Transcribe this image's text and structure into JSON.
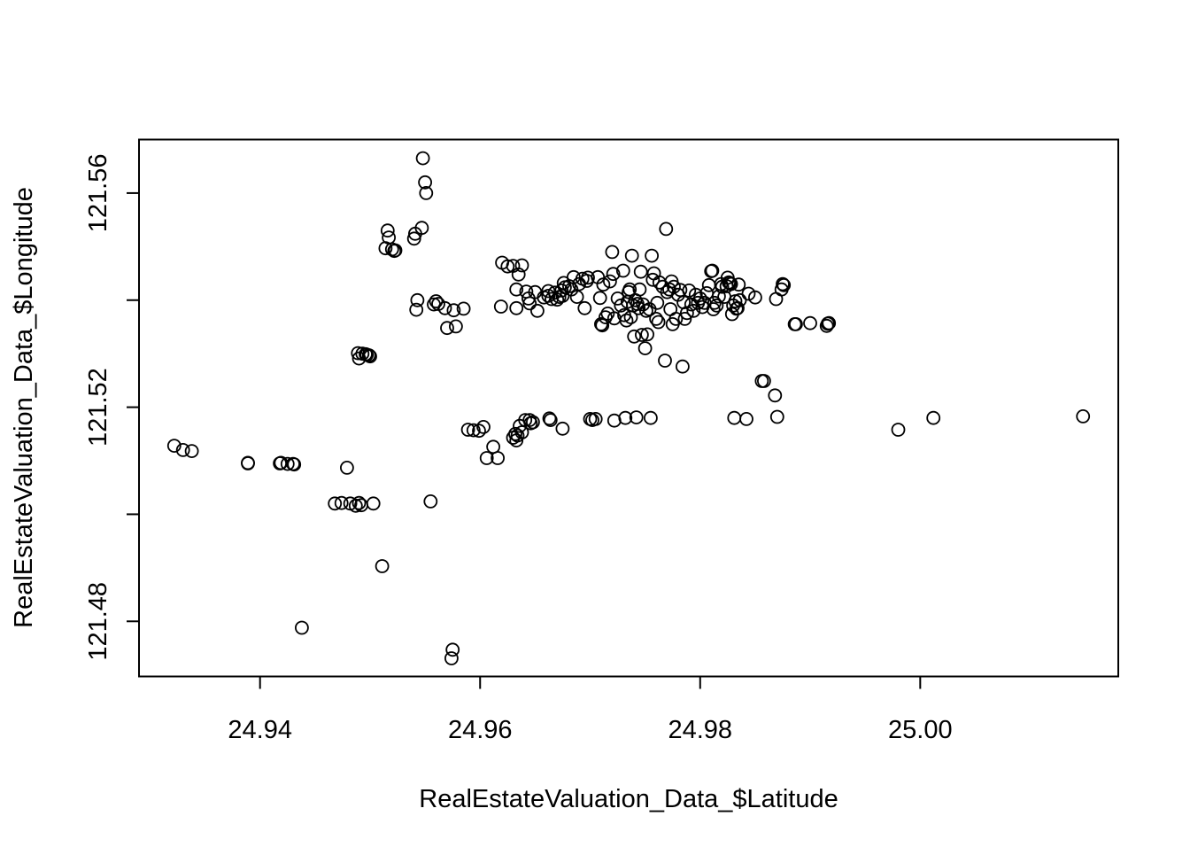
{
  "chart_data": {
    "type": "scatter",
    "title": "",
    "xlabel": "RealEstateValuation_Data_$Latitude",
    "ylabel": "RealEstateValuation_Data_$Longitude",
    "xlim": [
      24.929,
      25.018
    ],
    "ylim": [
      121.4697,
      121.57
    ],
    "x_ticks": [
      24.94,
      24.96,
      24.98,
      25.0
    ],
    "x_tick_labels": [
      "24.94",
      "24.96",
      "24.98",
      "25.00"
    ],
    "y_ticks": [
      121.48,
      121.5,
      121.52,
      121.54,
      121.56
    ],
    "y_tick_labels": [
      "121.48",
      "",
      "121.52",
      "",
      "121.56"
    ],
    "grid": false,
    "legend": "none",
    "marker": "open-circle",
    "marker_color": "#000000",
    "series": [
      {
        "points": [
          [
            24.9322,
            121.5128
          ],
          [
            24.933,
            121.512
          ],
          [
            24.9338,
            121.5118
          ],
          [
            24.9389,
            121.5095
          ],
          [
            24.9389,
            121.5096
          ],
          [
            24.9418,
            121.5095
          ],
          [
            24.9419,
            121.5096
          ],
          [
            24.9425,
            121.5094
          ],
          [
            24.943,
            121.5094
          ],
          [
            24.9431,
            121.5093
          ],
          [
            24.9438,
            121.4788
          ],
          [
            24.9468,
            121.502
          ],
          [
            24.9474,
            121.5021
          ],
          [
            24.9479,
            121.5087
          ],
          [
            24.9482,
            121.502
          ],
          [
            24.9487,
            121.5016
          ],
          [
            24.949,
            121.5021
          ],
          [
            24.9492,
            121.5017
          ],
          [
            24.9503,
            121.502
          ],
          [
            24.9489,
            121.5301
          ],
          [
            24.949,
            121.5291
          ],
          [
            24.9493,
            121.53
          ],
          [
            24.9496,
            121.5299
          ],
          [
            24.9497,
            121.5298
          ],
          [
            24.95,
            121.5295
          ],
          [
            24.9499,
            121.5297
          ],
          [
            24.9511,
            121.4903
          ],
          [
            24.9514,
            121.5497
          ],
          [
            24.9516,
            121.553
          ],
          [
            24.9517,
            121.5517
          ],
          [
            24.952,
            121.5495
          ],
          [
            24.9523,
            121.5493
          ],
          [
            24.9522,
            121.5492
          ],
          [
            24.954,
            121.5515
          ],
          [
            24.9541,
            121.5524
          ],
          [
            24.9547,
            121.5535
          ],
          [
            24.9548,
            121.5665
          ],
          [
            24.955,
            121.562
          ],
          [
            24.9551,
            121.56
          ],
          [
            24.9543,
            121.54
          ],
          [
            24.9542,
            121.5382
          ],
          [
            24.9555,
            121.5024
          ],
          [
            24.9558,
            121.5392
          ],
          [
            24.956,
            121.5398
          ],
          [
            24.9562,
            121.5393
          ],
          [
            24.9568,
            121.5385
          ],
          [
            24.957,
            121.5348
          ],
          [
            24.9574,
            121.4731
          ],
          [
            24.9575,
            121.4747
          ],
          [
            24.9576,
            121.5381
          ],
          [
            24.9578,
            121.5351
          ],
          [
            24.9585,
            121.5384
          ],
          [
            24.9589,
            121.5158
          ],
          [
            24.9594,
            121.5157
          ],
          [
            24.9599,
            121.5156
          ],
          [
            24.9603,
            121.5163
          ],
          [
            24.9606,
            121.5105
          ],
          [
            24.9612,
            121.5126
          ],
          [
            24.9616,
            121.5105
          ],
          [
            24.9619,
            121.5388
          ],
          [
            24.962,
            121.547
          ],
          [
            24.9625,
            121.5463
          ],
          [
            24.963,
            121.5143
          ],
          [
            24.9632,
            121.515
          ],
          [
            24.9634,
            121.5147
          ],
          [
            24.9633,
            121.5138
          ],
          [
            24.9636,
            121.5165
          ],
          [
            24.9638,
            121.5153
          ],
          [
            24.9641,
            121.5176
          ],
          [
            24.9645,
            121.5176
          ],
          [
            24.9648,
            121.5172
          ],
          [
            24.9646,
            121.517
          ],
          [
            24.963,
            121.5464
          ],
          [
            24.9635,
            121.5448
          ],
          [
            24.9638,
            121.5465
          ],
          [
            24.9633,
            121.542
          ],
          [
            24.9633,
            121.5385
          ],
          [
            24.9642,
            121.5416
          ],
          [
            24.9645,
            121.5394
          ],
          [
            24.9644,
            121.5403
          ],
          [
            24.965,
            121.5415
          ],
          [
            24.9652,
            121.538
          ],
          [
            24.9658,
            121.5405
          ],
          [
            24.9662,
            121.5417
          ],
          [
            24.9662,
            121.5408
          ],
          [
            24.9665,
            121.5402
          ],
          [
            24.9668,
            121.5414
          ],
          [
            24.967,
            121.5401
          ],
          [
            24.9672,
            121.5406
          ],
          [
            24.9674,
            121.5418
          ],
          [
            24.9675,
            121.5408
          ],
          [
            24.9676,
            121.5432
          ],
          [
            24.9677,
            121.5424
          ],
          [
            24.9663,
            121.5179
          ],
          [
            24.9664,
            121.5176
          ],
          [
            24.9675,
            121.516
          ],
          [
            24.9681,
            121.5426
          ],
          [
            24.9683,
            121.542
          ],
          [
            24.9685,
            121.5443
          ],
          [
            24.9688,
            121.5406
          ],
          [
            24.969,
            121.543
          ],
          [
            24.9693,
            121.544
          ],
          [
            24.9695,
            121.5385
          ],
          [
            24.9697,
            121.5436
          ],
          [
            24.9698,
            121.5442
          ],
          [
            24.97,
            121.5178
          ],
          [
            24.9702,
            121.5176
          ],
          [
            24.9705,
            121.5178
          ],
          [
            24.9707,
            121.5443
          ],
          [
            24.9709,
            121.5404
          ],
          [
            24.971,
            121.5355
          ],
          [
            24.9711,
            121.5353
          ],
          [
            24.9712,
            121.5429
          ],
          [
            24.9714,
            121.5368
          ],
          [
            24.9716,
            121.5375
          ],
          [
            24.9718,
            121.5435
          ],
          [
            24.972,
            121.549
          ],
          [
            24.9721,
            121.5449
          ],
          [
            24.9722,
            121.5175
          ],
          [
            24.9722,
            121.5366
          ],
          [
            24.9725,
            121.5403
          ],
          [
            24.9728,
            121.539
          ],
          [
            24.973,
            121.5455
          ],
          [
            24.9731,
            121.5372
          ],
          [
            24.9732,
            121.518
          ],
          [
            24.9733,
            121.5362
          ],
          [
            24.9734,
            121.5397
          ],
          [
            24.9735,
            121.5415
          ],
          [
            24.9736,
            121.542
          ],
          [
            24.9737,
            121.5368
          ],
          [
            24.9738,
            121.5483
          ],
          [
            24.9739,
            121.539
          ],
          [
            24.974,
            121.5332
          ],
          [
            24.9741,
            121.54
          ],
          [
            24.9742,
            121.5181
          ],
          [
            24.9743,
            121.5393
          ],
          [
            24.9744,
            121.5385
          ],
          [
            24.9745,
            121.542
          ],
          [
            24.9746,
            121.5453
          ],
          [
            24.9747,
            121.5335
          ],
          [
            24.9748,
            121.5392
          ],
          [
            24.975,
            121.531
          ],
          [
            24.9751,
            121.538
          ],
          [
            24.9752,
            121.5336
          ],
          [
            24.9754,
            121.5383
          ],
          [
            24.9755,
            121.518
          ],
          [
            24.9756,
            121.5483
          ],
          [
            24.9757,
            121.5438
          ],
          [
            24.9758,
            121.545
          ],
          [
            24.976,
            121.5365
          ],
          [
            24.9761,
            121.5395
          ],
          [
            24.9762,
            121.5359
          ],
          [
            24.9763,
            121.5433
          ],
          [
            24.9766,
            121.5425
          ],
          [
            24.9768,
            121.5287
          ],
          [
            24.9769,
            121.5533
          ],
          [
            24.977,
            121.5415
          ],
          [
            24.9772,
            121.542
          ],
          [
            24.9773,
            121.5383
          ],
          [
            24.9774,
            121.5435
          ],
          [
            24.9775,
            121.5355
          ],
          [
            24.9776,
            121.5425
          ],
          [
            24.9778,
            121.5365
          ],
          [
            24.978,
            121.541
          ],
          [
            24.9782,
            121.5419
          ],
          [
            24.9784,
            121.5276
          ],
          [
            24.9785,
            121.5396
          ],
          [
            24.9786,
            121.5365
          ],
          [
            24.9788,
            121.5376
          ],
          [
            24.979,
            121.5418
          ],
          [
            24.9792,
            121.5392
          ],
          [
            24.9794,
            121.538
          ],
          [
            24.9796,
            121.541
          ],
          [
            24.9798,
            121.5395
          ],
          [
            24.98,
            121.5403
          ],
          [
            24.9802,
            121.5387
          ],
          [
            24.9804,
            121.5395
          ],
          [
            24.9806,
            121.5413
          ],
          [
            24.9808,
            121.5428
          ],
          [
            24.981,
            121.5454
          ],
          [
            24.9811,
            121.5455
          ],
          [
            24.9812,
            121.5383
          ],
          [
            24.9813,
            121.5395
          ],
          [
            24.9815,
            121.539
          ],
          [
            24.9817,
            121.5407
          ],
          [
            24.9819,
            121.543
          ],
          [
            24.982,
            121.5425
          ],
          [
            24.9822,
            121.5406
          ],
          [
            24.9824,
            121.5426
          ],
          [
            24.9825,
            121.5442
          ],
          [
            24.9826,
            121.5433
          ],
          [
            24.9827,
            121.5432
          ],
          [
            24.9828,
            121.543
          ],
          [
            24.9829,
            121.5374
          ],
          [
            24.983,
            121.539
          ],
          [
            24.9831,
            121.518
          ],
          [
            24.9832,
            121.5398
          ],
          [
            24.9833,
            121.5384
          ],
          [
            24.9834,
            121.5385
          ],
          [
            24.9835,
            121.5429
          ],
          [
            24.9836,
            121.54
          ],
          [
            24.9842,
            121.5178
          ],
          [
            24.9844,
            121.5412
          ],
          [
            24.985,
            121.5405
          ],
          [
            24.9856,
            121.5249
          ],
          [
            24.9858,
            121.5249
          ],
          [
            24.9868,
            121.5222
          ],
          [
            24.9869,
            121.5402
          ],
          [
            24.987,
            121.5182
          ],
          [
            24.9874,
            121.542
          ],
          [
            24.9875,
            121.543
          ],
          [
            24.9876,
            121.5428
          ],
          [
            24.9886,
            121.5355
          ],
          [
            24.9887,
            121.5355
          ],
          [
            24.99,
            121.5357
          ],
          [
            24.9915,
            121.5352
          ],
          [
            24.9916,
            121.5356
          ],
          [
            24.9917,
            121.5357
          ],
          [
            24.998,
            121.5158
          ],
          [
            25.0012,
            121.518
          ],
          [
            25.0148,
            121.5183
          ]
        ]
      }
    ]
  }
}
